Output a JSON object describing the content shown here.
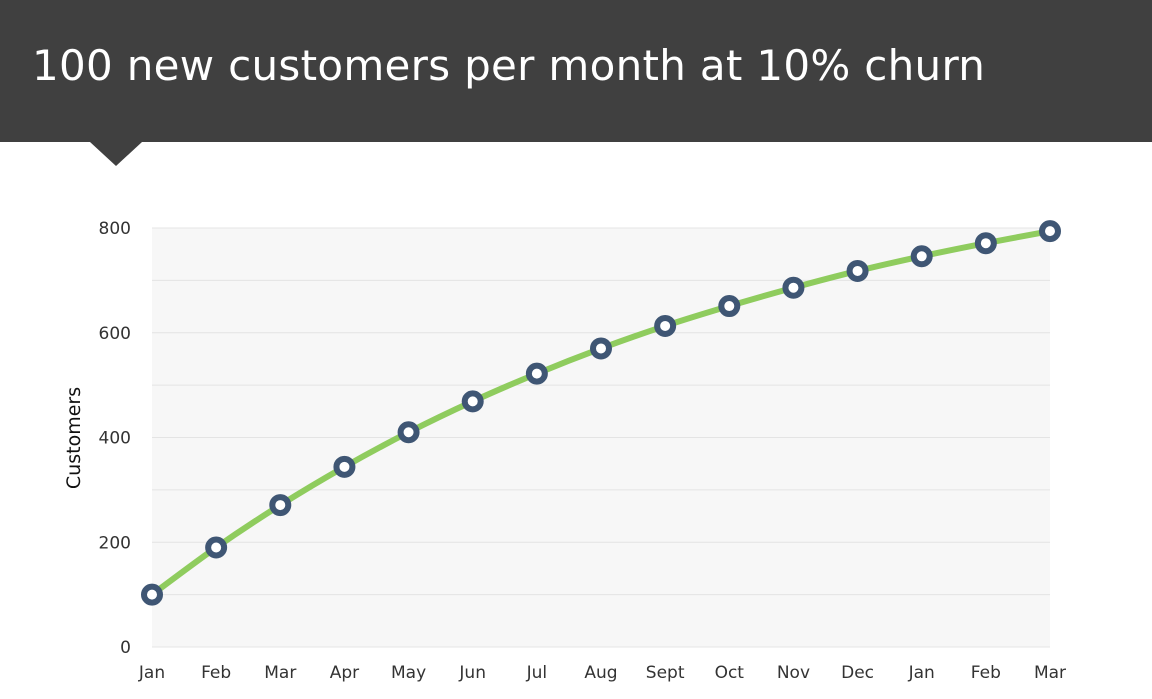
{
  "title": "100 new customers per month at 10% churn",
  "colors": {
    "title_background": "#404040",
    "title_text": "#ffffff",
    "plot_background": "#f7f7f7",
    "gridline": "#e4e4e4",
    "line": "#8fcc5e",
    "marker_stroke": "#3f5674",
    "marker_fill": "#ffffff"
  },
  "chart_data": {
    "type": "line",
    "title": "100 new customers per month at 10% churn",
    "ylabel": "Customers",
    "xlabel": "",
    "categories": [
      "Jan",
      "Feb",
      "Mar",
      "Apr",
      "May",
      "Jun",
      "Jul",
      "Aug",
      "Sept",
      "Oct",
      "Nov",
      "Dec",
      "Jan",
      "Feb",
      "Mar"
    ],
    "series": [
      {
        "values": [
          100,
          190,
          271,
          344,
          410,
          469,
          522,
          570,
          613,
          651,
          686,
          718,
          746,
          771,
          794
        ]
      }
    ],
    "ylim": [
      0,
      800
    ],
    "yticks": [
      0,
      200,
      400,
      600,
      800
    ],
    "grid": true,
    "legend": "none",
    "markers": "circle"
  }
}
